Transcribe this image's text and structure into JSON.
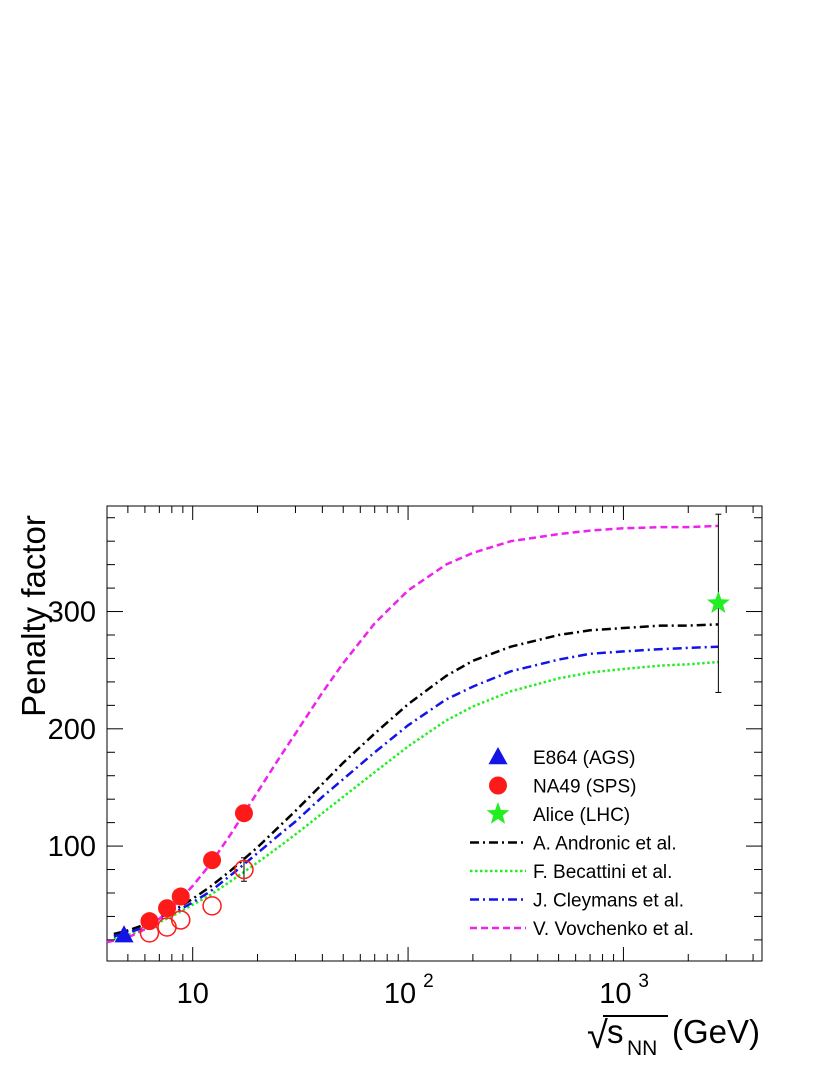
{
  "chart_data": {
    "type": "line",
    "title": "",
    "ylabel": "Penalty factor",
    "xlabel": {
      "sqrt_symbol": "√",
      "main": "s",
      "subscript": "NN",
      "unit": "(GeV)"
    },
    "x_scale": "log",
    "xlim": [
      4.0,
      4400
    ],
    "ylim": [
      2,
      390
    ],
    "x_ticks": [
      {
        "value": 10,
        "base": "10",
        "exp": ""
      },
      {
        "value": 100,
        "base": "10",
        "exp": "2"
      },
      {
        "value": 1000,
        "base": "10",
        "exp": "3"
      }
    ],
    "y_ticks": [
      {
        "value": 100,
        "label": "100"
      },
      {
        "value": 200,
        "label": "200"
      },
      {
        "value": 300,
        "label": "300"
      }
    ],
    "grid": false,
    "legend_position": "bottom-right",
    "legend": [
      {
        "label": "E864 (AGS)",
        "kind": "marker",
        "marker": "triangle",
        "color": "#1414e6"
      },
      {
        "label": "NA49 (SPS)",
        "kind": "marker",
        "marker": "circle",
        "color": "#ff1a1a"
      },
      {
        "label": "Alice (LHC)",
        "kind": "marker",
        "marker": "star",
        "color": "#22ee22"
      },
      {
        "label": "A. Andronic et al.",
        "kind": "line",
        "dash": "dashdot",
        "color": "#000000"
      },
      {
        "label": "F. Becattini et al.",
        "kind": "line",
        "dash": "dotted",
        "color": "#22ee22"
      },
      {
        "label": "J. Cleymans et al.",
        "kind": "line",
        "dash": "dashdot",
        "color": "#1414e6"
      },
      {
        "label": "V. Vovchenko et al.",
        "kind": "line",
        "dash": "dashed",
        "color": "#ee22ee"
      }
    ],
    "series": [
      {
        "name": "A. Andronic et al.",
        "kind": "line",
        "color": "#000000",
        "dash": "dashdot",
        "x": [
          4.3,
          5,
          6,
          7,
          8,
          10,
          12,
          15,
          20,
          25,
          30,
          40,
          50,
          70,
          100,
          150,
          200,
          300,
          500,
          700,
          1000,
          1500,
          2000,
          2760
        ],
        "y": [
          25,
          28,
          33,
          39,
          44,
          55,
          65,
          79,
          99,
          116,
          130,
          153,
          171,
          196,
          221,
          245,
          258,
          270,
          280,
          284,
          286,
          288,
          288,
          289
        ]
      },
      {
        "name": "F. Becattini et al.",
        "kind": "line",
        "color": "#22ee22",
        "dash": "dotted",
        "x": [
          4.3,
          5,
          6,
          7,
          8,
          10,
          12,
          15,
          20,
          25,
          30,
          40,
          50,
          70,
          100,
          150,
          200,
          300,
          500,
          700,
          1000,
          1500,
          2000,
          2760
        ],
        "y": [
          21,
          24,
          29,
          35,
          40,
          50,
          58,
          70,
          86,
          99,
          110,
          128,
          142,
          163,
          185,
          207,
          219,
          232,
          243,
          248,
          251,
          254,
          255,
          257
        ]
      },
      {
        "name": "J. Cleymans et al.",
        "kind": "line",
        "color": "#1414e6",
        "dash": "dashdot",
        "x": [
          4.3,
          5,
          6,
          7,
          8,
          10,
          12,
          15,
          20,
          25,
          30,
          40,
          50,
          70,
          100,
          150,
          200,
          300,
          500,
          700,
          1000,
          1500,
          2000,
          2760
        ],
        "y": [
          23,
          26,
          31,
          37,
          42,
          52,
          61,
          75,
          94,
          109,
          121,
          142,
          157,
          180,
          203,
          225,
          236,
          249,
          259,
          264,
          266,
          268,
          269,
          270
        ]
      },
      {
        "name": "V. Vovchenko et al.",
        "kind": "line",
        "color": "#ee22ee",
        "dash": "dashed",
        "x": [
          4.0,
          5,
          6,
          7,
          8,
          10,
          12,
          15,
          20,
          25,
          30,
          40,
          50,
          70,
          100,
          150,
          200,
          300,
          500,
          700,
          1000,
          1500,
          2000,
          2760
        ],
        "y": [
          18,
          22,
          29,
          38,
          47,
          66,
          84,
          110,
          146,
          174,
          196,
          231,
          256,
          290,
          318,
          340,
          350,
          360,
          366,
          369,
          371,
          372,
          372,
          373
        ]
      },
      {
        "name": "E864 (AGS)",
        "kind": "marker",
        "marker": "triangle",
        "filled": true,
        "color": "#1414e6",
        "x": [
          4.8
        ],
        "y": [
          24
        ],
        "yerr": [
          0
        ]
      },
      {
        "name": "NA49 (SPS)",
        "kind": "marker",
        "marker": "circle",
        "filled": true,
        "color": "#ff1a1a",
        "x": [
          6.3,
          7.6,
          8.8,
          12.3,
          17.3
        ],
        "y": [
          36,
          47,
          57,
          88,
          128
        ],
        "yerr": [
          0,
          0,
          0,
          0,
          0
        ]
      },
      {
        "kind": "marker",
        "marker": "circle",
        "filled": false,
        "color": "#ff1a1a",
        "x": [
          6.3,
          7.6,
          8.8,
          12.3,
          17.3
        ],
        "y": [
          26,
          31,
          37,
          49,
          80
        ],
        "yerr": [
          0,
          0,
          0,
          0,
          10
        ]
      },
      {
        "name": "Alice (LHC)",
        "kind": "marker",
        "marker": "star",
        "filled": true,
        "color": "#22ee22",
        "x": [
          2760
        ],
        "y": [
          307
        ],
        "yerr": [
          76
        ]
      }
    ]
  }
}
